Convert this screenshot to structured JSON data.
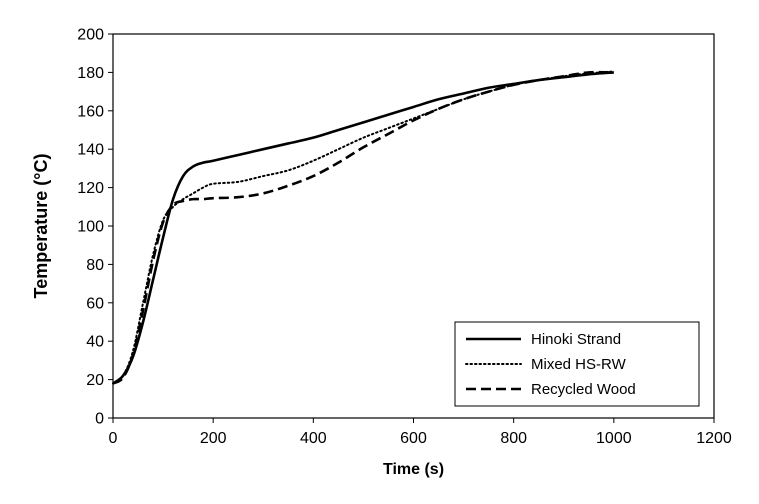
{
  "chart_data": {
    "type": "line",
    "xlabel": "Time (s)",
    "ylabel": "Temperature (°C)",
    "xlim": [
      0,
      1200
    ],
    "ylim": [
      0,
      200
    ],
    "xticks": [
      0,
      200,
      400,
      600,
      800,
      1000,
      1200
    ],
    "yticks": [
      0,
      20,
      40,
      60,
      80,
      100,
      120,
      140,
      160,
      180,
      200
    ],
    "grid": false,
    "legend_position": "bottom-right",
    "series": [
      {
        "name": "Hinoki Strand",
        "style": "solid",
        "x": [
          0,
          20,
          40,
          60,
          80,
          100,
          120,
          140,
          160,
          180,
          200,
          250,
          300,
          350,
          400,
          450,
          500,
          550,
          600,
          650,
          700,
          750,
          800,
          850,
          900,
          950,
          1000
        ],
        "y": [
          18,
          22,
          32,
          50,
          72,
          94,
          114,
          126,
          131,
          133,
          134,
          137,
          140,
          143,
          146,
          150,
          154,
          158,
          162,
          166,
          169,
          172,
          174,
          176,
          177.5,
          179,
          180
        ]
      },
      {
        "name": "Mixed HS-RW",
        "style": "dotted",
        "x": [
          0,
          20,
          40,
          60,
          80,
          100,
          120,
          140,
          160,
          180,
          200,
          250,
          300,
          350,
          400,
          450,
          500,
          550,
          600,
          650,
          700,
          750,
          800,
          850,
          900,
          950,
          1000
        ],
        "y": [
          18,
          22,
          35,
          60,
          85,
          103,
          110,
          114,
          117,
          120,
          122,
          123,
          126,
          129,
          134,
          140,
          146,
          151,
          156,
          161,
          166,
          170,
          173.5,
          176,
          178,
          179.5,
          180.5
        ]
      },
      {
        "name": "Recycled Wood",
        "style": "dashed",
        "x": [
          0,
          20,
          40,
          60,
          80,
          100,
          120,
          140,
          160,
          180,
          200,
          250,
          300,
          350,
          400,
          450,
          500,
          550,
          600,
          650,
          700,
          750,
          800,
          850,
          900,
          950,
          1000
        ],
        "y": [
          18,
          21,
          33,
          56,
          82,
          102,
          111,
          113,
          114,
          114,
          114.5,
          115,
          117,
          121,
          126,
          133,
          141,
          148,
          155,
          161,
          166,
          170,
          173.5,
          176,
          178,
          180,
          180
        ]
      }
    ]
  }
}
